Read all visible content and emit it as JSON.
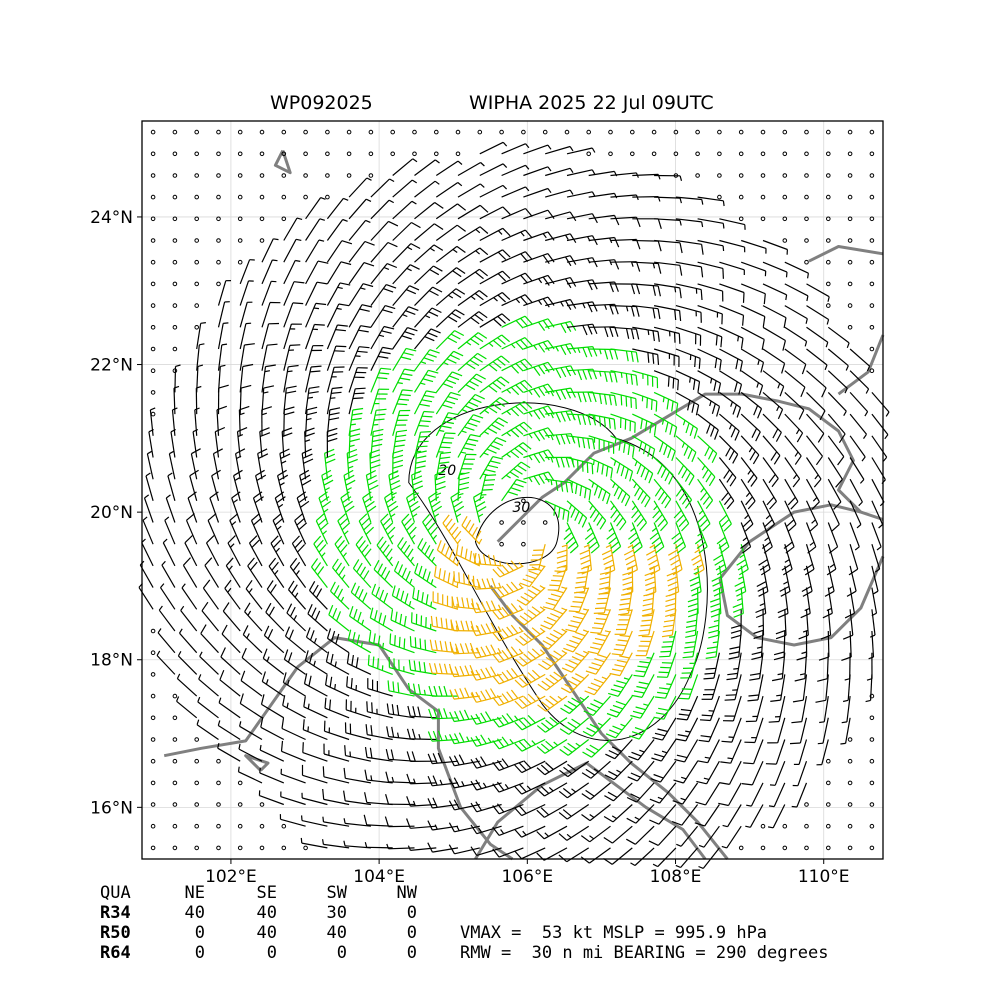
{
  "header": {
    "storm_id": "WP092025",
    "storm_title": "WIPHA 2025 22 Jul 09UTC"
  },
  "map": {
    "lon_range": [
      100.8,
      110.8
    ],
    "lat_range": [
      15.3,
      25.3
    ],
    "lon_ticks": [
      {
        "value": 102,
        "label": "102°E"
      },
      {
        "value": 104,
        "label": "104°E"
      },
      {
        "value": 106,
        "label": "106°E"
      },
      {
        "value": 108,
        "label": "108°E"
      },
      {
        "value": 110,
        "label": "110°E"
      }
    ],
    "lat_ticks": [
      {
        "value": 16,
        "label": "16°N"
      },
      {
        "value": 18,
        "label": "18°N"
      },
      {
        "value": 20,
        "label": "20°N"
      },
      {
        "value": 22,
        "label": "22°N"
      },
      {
        "value": 24,
        "label": "24°N"
      }
    ],
    "grid": true,
    "storm_center": {
      "lon": 105.9,
      "lat": 19.8
    },
    "contours": [
      {
        "label": "20",
        "label_lon": 104.8,
        "label_lat": 20.5
      },
      {
        "label": "30",
        "label_lon": 105.8,
        "label_lat": 20.0
      }
    ],
    "colors": {
      "coast": "#808080",
      "barb": "#000000",
      "barb_r34": "#00dd00",
      "barb_r50": "#f0b000",
      "contour": "#000000",
      "grid": "#d9d9d9"
    }
  },
  "table": {
    "headers": [
      "QUA",
      "NE",
      "SE",
      "SW",
      "NW"
    ],
    "rows": [
      {
        "label": "R34",
        "values": [
          "40",
          "40",
          "30",
          "0"
        ]
      },
      {
        "label": "R50",
        "values": [
          "0",
          "40",
          "40",
          "0"
        ]
      },
      {
        "label": "R64",
        "values": [
          "0",
          "0",
          "0",
          "0"
        ]
      }
    ]
  },
  "summary": {
    "line1": "VMAX =  53 kt MSLP = 995.9 hPa",
    "line2": "RMW =  30 n mi BEARING = 290 degrees"
  }
}
